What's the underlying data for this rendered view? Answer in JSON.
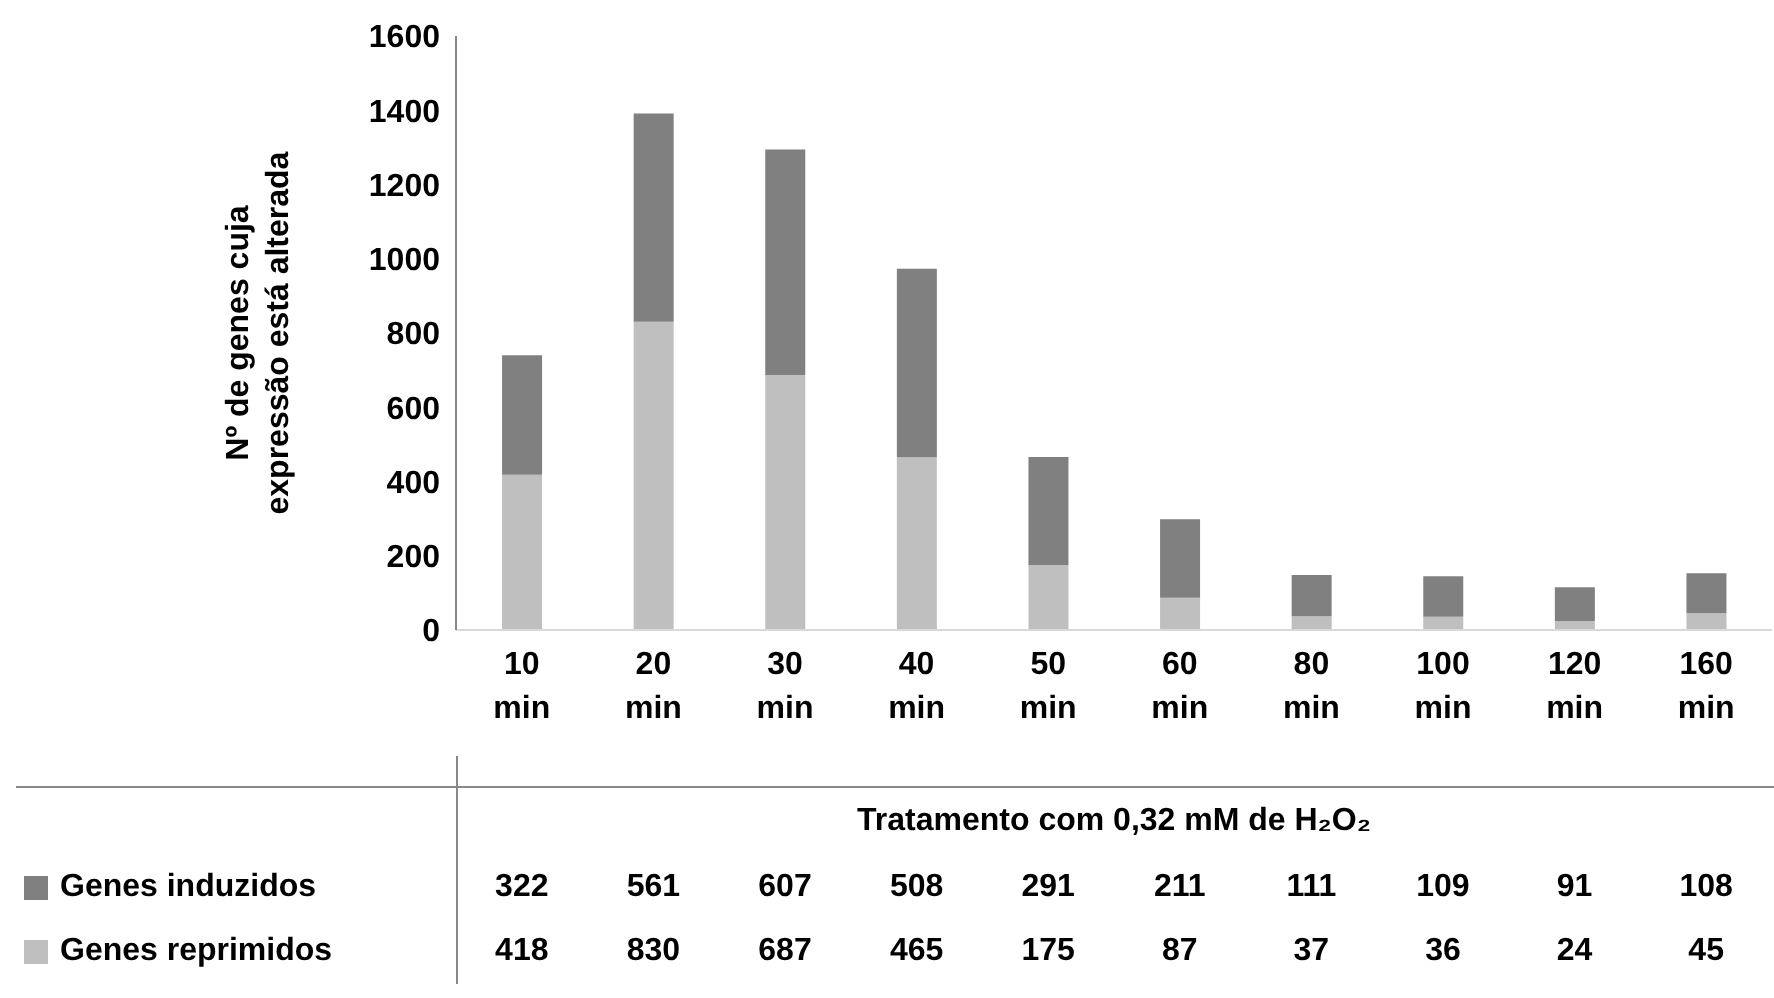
{
  "chart_data": {
    "type": "bar",
    "stacked": true,
    "ylabel": "Nº de genes cuja expressão está alterada",
    "xlabel": "Tratamento com 0,32 mM de H₂O₂",
    "categories": [
      "10 min",
      "20 min",
      "30 min",
      "40 min",
      "50 min",
      "60 min",
      "80 min",
      "100 min",
      "120 min",
      "160 min"
    ],
    "series": [
      {
        "name": "Genes reprimidos",
        "color": "#bfbfbf",
        "values": [
          418,
          830,
          687,
          465,
          175,
          87,
          37,
          36,
          24,
          45
        ]
      },
      {
        "name": "Genes induzidos",
        "color": "#808080",
        "values": [
          322,
          561,
          607,
          508,
          291,
          211,
          111,
          109,
          91,
          108
        ]
      }
    ],
    "ylim": [
      0,
      1600
    ],
    "yticks": [
      0,
      200,
      400,
      600,
      800,
      1000,
      1200,
      1400,
      1600
    ],
    "grid": false,
    "legend": "bottom left",
    "data_labels": true
  }
}
